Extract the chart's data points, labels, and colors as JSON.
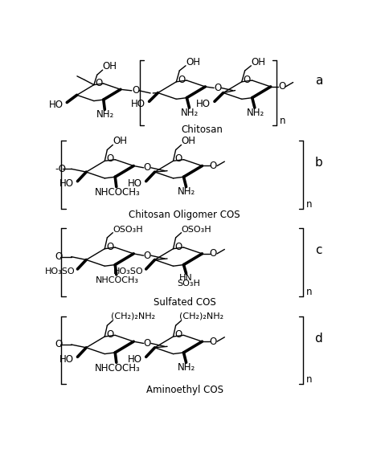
{
  "bg_color": "#ffffff",
  "labels": {
    "a": "a",
    "b": "b",
    "c": "c",
    "d": "d",
    "chitosan": "Chitosan",
    "cos": "Chitosan Oligomer COS",
    "sulfated": "Sulfated COS",
    "aminoethyl": "Aminoethyl COS"
  },
  "lw_thin": 1.0,
  "lw_thick": 2.6,
  "fs": 8.5,
  "fs_label": 11.0
}
